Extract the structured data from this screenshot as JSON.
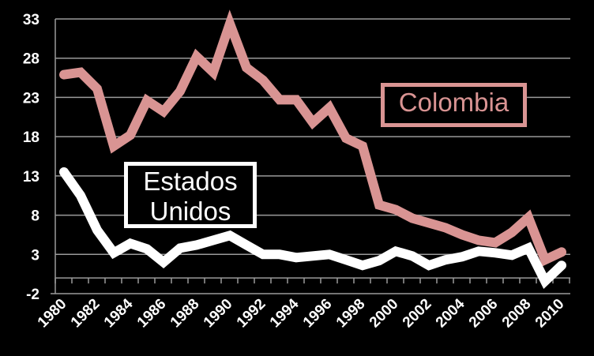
{
  "chart_data": {
    "type": "line",
    "title": "",
    "xlabel": "",
    "ylabel": "",
    "x": [
      1980,
      1981,
      1982,
      1983,
      1984,
      1985,
      1986,
      1987,
      1988,
      1989,
      1990,
      1991,
      1992,
      1993,
      1994,
      1995,
      1996,
      1997,
      1998,
      1999,
      2000,
      2001,
      2002,
      2003,
      2004,
      2005,
      2006,
      2007,
      2008,
      2009,
      2010
    ],
    "x_tick_labels": [
      "1980",
      "1982",
      "1984",
      "1986",
      "1988",
      "1990",
      "1992",
      "1994",
      "1996",
      "1998",
      "2000",
      "2002",
      "2004",
      "2006",
      "2008",
      "2010"
    ],
    "y_tick_labels": [
      "33",
      "28",
      "23",
      "18",
      "13",
      "8",
      "3",
      "-2"
    ],
    "ylim": [
      -2,
      33
    ],
    "grid": true,
    "legend_position": "inline-labels",
    "series": [
      {
        "name": "Colombia",
        "color": "#d99493",
        "values": [
          25.9,
          26.2,
          24.1,
          16.8,
          18.2,
          22.6,
          21.2,
          23.8,
          28.2,
          26.2,
          32.4,
          26.8,
          25.2,
          22.7,
          22.7,
          19.8,
          21.7,
          17.8,
          16.8,
          9.3,
          8.7,
          7.6,
          7.0,
          6.4,
          5.5,
          4.8,
          4.5,
          5.8,
          7.7,
          2.3,
          3.3
        ]
      },
      {
        "name": "Estados Unidos",
        "color": "#ffffff",
        "values": [
          13.5,
          10.5,
          6.1,
          3.2,
          4.4,
          3.7,
          2.0,
          3.8,
          4.2,
          4.8,
          5.4,
          4.2,
          3.0,
          3.0,
          2.6,
          2.8,
          3.0,
          2.3,
          1.6,
          2.2,
          3.4,
          2.8,
          1.6,
          2.3,
          2.7,
          3.4,
          3.2,
          2.9,
          3.8,
          -0.4,
          1.6
        ]
      }
    ]
  },
  "legend": {
    "colombia_label": "Colombia",
    "usa_label_line1": "Estados",
    "usa_label_line2": "Unidos"
  },
  "colors": {
    "background": "#000000",
    "grid": "#9a9a9a",
    "colombia": "#d99493",
    "usa": "#ffffff"
  }
}
